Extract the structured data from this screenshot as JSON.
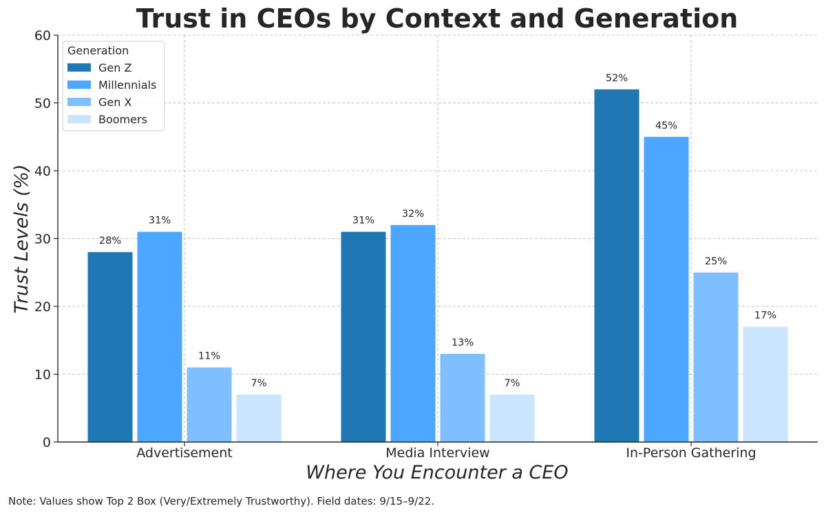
{
  "chart_data": {
    "type": "bar",
    "title": "Trust in CEOs by Context and Generation",
    "xlabel": "Where You Encounter a CEO",
    "ylabel": "Trust Levels (%)",
    "ylim": [
      0,
      60
    ],
    "yticks": [
      "0",
      "10",
      "20",
      "30",
      "40",
      "50",
      "60"
    ],
    "categories": [
      "Advertisement",
      "Media Interview",
      "In-Person Gathering"
    ],
    "series": [
      {
        "name": "Gen Z",
        "values": [
          28,
          31,
          52
        ],
        "labels": [
          "28%",
          "31%",
          "52%"
        ],
        "color": "#1f77b4"
      },
      {
        "name": "Millennials",
        "values": [
          31,
          32,
          45
        ],
        "labels": [
          "31%",
          "32%",
          "45%"
        ],
        "color": "#4da6ff"
      },
      {
        "name": "Gen X",
        "values": [
          11,
          13,
          25
        ],
        "labels": [
          "11%",
          "13%",
          "25%"
        ],
        "color": "#80bfff"
      },
      {
        "name": "Boomers",
        "values": [
          7,
          7,
          17
        ],
        "labels": [
          "7%",
          "7%",
          "17%"
        ],
        "color": "#cce5ff"
      }
    ],
    "legend": {
      "title": "Generation",
      "position": "top-left"
    },
    "grid": true,
    "note": "Note: Values show Top 2 Box (Very/Extremely Trustworthy). Field dates: 9/15–9/22."
  }
}
